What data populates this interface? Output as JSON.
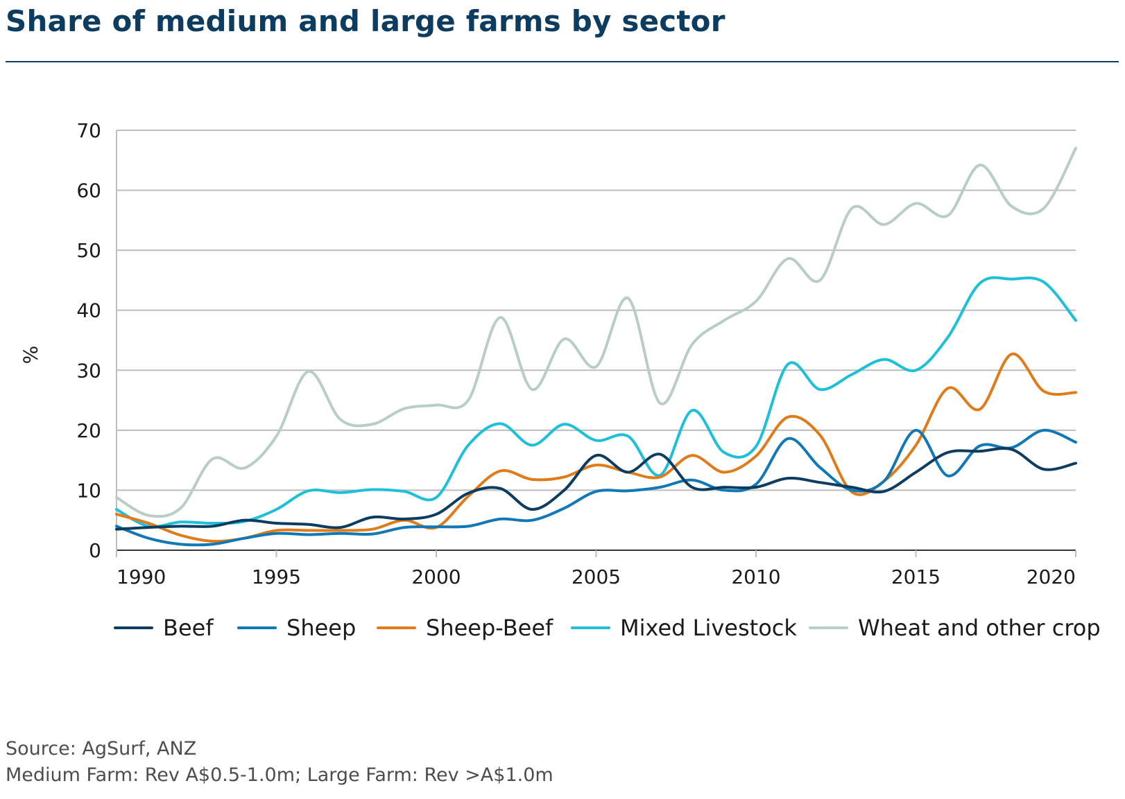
{
  "title": "Share of medium and large farms by sector",
  "source_lines": [
    "Source: AgSurf, ANZ",
    "Medium Farm: Rev A$0.5-1.0m; Large Farm: Rev >A$1.0m"
  ],
  "chart_data": {
    "type": "line",
    "title": "Share of medium and large farms by sector",
    "xlabel": "",
    "ylabel": "%",
    "xlim": [
      1990,
      2020
    ],
    "ylim": [
      0,
      70
    ],
    "xticks": [
      "1990",
      "1995",
      "2000",
      "2005",
      "2010",
      "2015",
      "2020"
    ],
    "yticks": [
      "0",
      "10",
      "20",
      "30",
      "40",
      "50",
      "60",
      "70"
    ],
    "grid": "horizontal",
    "legend_position": "bottom",
    "x": [
      1990,
      1991,
      1992,
      1993,
      1994,
      1995,
      1996,
      1997,
      1998,
      1999,
      2000,
      2001,
      2002,
      2003,
      2004,
      2005,
      2006,
      2007,
      2008,
      2009,
      2010,
      2011,
      2012,
      2013,
      2014,
      2015,
      2016,
      2017,
      2018,
      2019,
      2020
    ],
    "series": [
      {
        "name": "Beef",
        "color": "#0d3c61",
        "values": [
          3.5,
          3.8,
          4.0,
          4.0,
          5.0,
          4.5,
          4.3,
          3.8,
          5.5,
          5.2,
          6.0,
          9.5,
          10.3,
          6.8,
          10.0,
          15.8,
          13.0,
          16.0,
          10.5,
          10.5,
          10.5,
          12.0,
          11.3,
          10.5,
          9.8,
          13.0,
          16.3,
          16.5,
          16.8,
          13.5,
          14.5
        ]
      },
      {
        "name": "Sheep",
        "color": "#0f78b5",
        "values": [
          4.0,
          2.0,
          1.0,
          1.0,
          2.0,
          2.8,
          2.6,
          2.8,
          2.7,
          3.8,
          3.9,
          4.0,
          5.2,
          5.0,
          7.0,
          9.8,
          9.9,
          10.5,
          11.7,
          10.0,
          11.0,
          18.6,
          13.8,
          10.0,
          11.5,
          20.0,
          12.4,
          17.4,
          17.1,
          20.0,
          18.0
        ]
      },
      {
        "name": "Sheep-Beef",
        "color": "#e07b1a",
        "values": [
          6.0,
          4.5,
          2.5,
          1.5,
          2.0,
          3.3,
          3.3,
          3.3,
          3.5,
          5.0,
          3.8,
          9.0,
          13.2,
          11.8,
          12.2,
          14.2,
          13.0,
          12.2,
          15.8,
          13.0,
          15.7,
          22.2,
          19.2,
          9.7,
          11.5,
          17.5,
          27.0,
          23.5,
          32.7,
          26.5,
          26.3
        ]
      },
      {
        "name": "Mixed Livestock",
        "color": "#1ec0d9",
        "values": [
          6.8,
          4.0,
          4.7,
          4.5,
          4.8,
          6.8,
          9.9,
          9.6,
          10.1,
          9.8,
          8.8,
          17.5,
          21.1,
          17.5,
          21.0,
          18.3,
          19.0,
          12.5,
          23.3,
          16.3,
          17.3,
          31.0,
          26.8,
          29.3,
          31.8,
          30.0,
          35.5,
          44.5,
          45.2,
          44.7,
          38.3
        ]
      },
      {
        "name": "Wheat and other crop",
        "color": "#b8ccc8",
        "values": [
          8.8,
          5.8,
          7.0,
          15.2,
          13.7,
          19.0,
          29.8,
          21.8,
          21.0,
          23.6,
          24.2,
          25.0,
          38.8,
          26.8,
          35.2,
          30.6,
          42.0,
          24.5,
          34.3,
          38.3,
          41.5,
          48.6,
          45.0,
          57.0,
          54.3,
          57.8,
          55.8,
          64.2,
          57.3,
          57.0,
          67.0
        ]
      }
    ]
  }
}
